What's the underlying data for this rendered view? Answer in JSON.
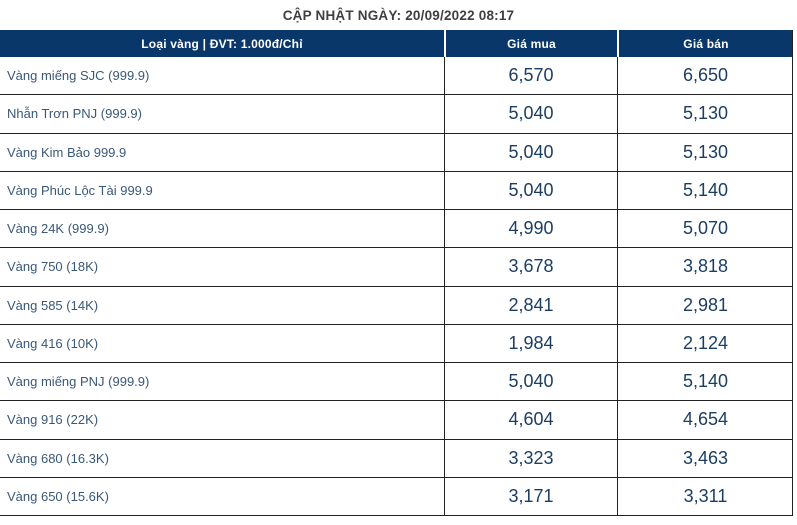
{
  "page": {
    "update_label": "CẬP NHẬT NGÀY: 20/09/2022 08:17"
  },
  "colors": {
    "header_bg": "#0a3769",
    "label_text": "#3a5878",
    "number_text": "#1c3e63"
  },
  "table": {
    "headers": {
      "type": "Loại vàng | ĐVT: 1.000đ/Chỉ",
      "buy": "Giá mua",
      "sell": "Giá bán"
    },
    "rows": [
      {
        "name": "Vàng miếng SJC (999.9)",
        "buy": "6,570",
        "sell": "6,650"
      },
      {
        "name": "Nhẫn Trơn PNJ (999.9)",
        "buy": "5,040",
        "sell": "5,130"
      },
      {
        "name": "Vàng Kim Bảo 999.9",
        "buy": "5,040",
        "sell": "5,130"
      },
      {
        "name": "Vàng Phúc Lộc Tài 999.9",
        "buy": "5,040",
        "sell": "5,140"
      },
      {
        "name": "Vàng 24K (999.9)",
        "buy": "4,990",
        "sell": "5,070"
      },
      {
        "name": "Vàng 750 (18K)",
        "buy": "3,678",
        "sell": "3,818"
      },
      {
        "name": "Vàng 585 (14K)",
        "buy": "2,841",
        "sell": "2,981"
      },
      {
        "name": "Vàng 416 (10K)",
        "buy": "1,984",
        "sell": "2,124"
      },
      {
        "name": "Vàng miếng PNJ (999.9)",
        "buy": "5,040",
        "sell": "5,140"
      },
      {
        "name": "Vàng 916 (22K)",
        "buy": "4,604",
        "sell": "4,654"
      },
      {
        "name": "Vàng 680 (16.3K)",
        "buy": "3,323",
        "sell": "3,463"
      },
      {
        "name": "Vàng 650 (15.6K)",
        "buy": "3,171",
        "sell": "3,311"
      }
    ]
  }
}
